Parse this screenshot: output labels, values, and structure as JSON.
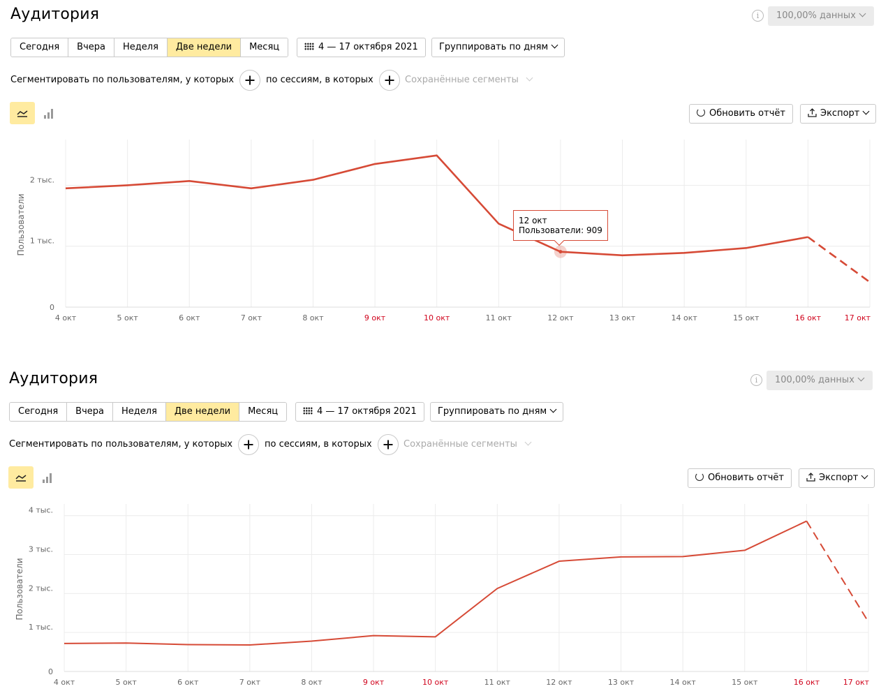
{
  "panels": [
    {
      "title": "Аудитория",
      "data_sampling": "100,00% данных",
      "periods": [
        {
          "label": "Сегодня",
          "active": false
        },
        {
          "label": "Вчера",
          "active": false
        },
        {
          "label": "Неделя",
          "active": false
        },
        {
          "label": "Две недели",
          "active": true
        },
        {
          "label": "Месяц",
          "active": false
        }
      ],
      "date_range": "4 — 17 октября 2021",
      "grouping": "Группировать по дням",
      "segment_users": "Сегментировать по пользователям, у которых",
      "segment_sessions": "по сессиям, в которых",
      "saved_segments": "Сохранённые сегменты",
      "refresh_label": "Обновить отчёт",
      "export_label": "Экспорт",
      "tooltip": {
        "date": "12 окт",
        "text": "Пользователи: 909"
      }
    },
    {
      "title": "Аудитория",
      "data_sampling": "100,00% данных",
      "periods": [
        {
          "label": "Сегодня",
          "active": false
        },
        {
          "label": "Вчера",
          "active": false
        },
        {
          "label": "Неделя",
          "active": false
        },
        {
          "label": "Две недели",
          "active": true
        },
        {
          "label": "Месяц",
          "active": false
        }
      ],
      "date_range": "4 — 17 октября 2021",
      "grouping": "Группировать по дням",
      "segment_users": "Сегментировать по пользователям, у которых",
      "segment_sessions": "по сессиям, в которых",
      "saved_segments": "Сохранённые сегменты",
      "refresh_label": "Обновить отчёт",
      "export_label": "Экспорт"
    }
  ],
  "colors": {
    "line": "#d64a36",
    "weekend": "#d0021b",
    "active_toggle": "#ffeba0"
  },
  "chart_data": [
    {
      "type": "line",
      "categories": [
        "4 окт",
        "5 окт",
        "6 окт",
        "7 окт",
        "8 окт",
        "9 окт",
        "10 окт",
        "11 окт",
        "12 окт",
        "13 окт",
        "14 окт",
        "15 окт",
        "16 окт",
        "17 окт"
      ],
      "weekend": [
        "9 окт",
        "10 окт",
        "16 окт",
        "17 окт"
      ],
      "ylabel": "Пользователи",
      "yticks": [
        {
          "value": 0,
          "label": "0"
        },
        {
          "value": 1000,
          "label": "1 тыс."
        },
        {
          "value": 2000,
          "label": "2 тыс."
        }
      ],
      "ylim": [
        0,
        2750
      ],
      "series": [
        {
          "values": [
            1950,
            2000,
            2070,
            1950,
            2090,
            2350,
            2490,
            1370,
            909,
            850,
            890,
            970,
            1150,
            410
          ],
          "dashed_from": 12
        }
      ],
      "highlight_index": 8,
      "grid": true
    },
    {
      "type": "line",
      "categories": [
        "4 окт",
        "5 окт",
        "6 окт",
        "7 окт",
        "8 окт",
        "9 окт",
        "10 окт",
        "11 окт",
        "12 окт",
        "13 окт",
        "14 окт",
        "15 окт",
        "16 окт",
        "17 окт"
      ],
      "weekend": [
        "9 окт",
        "10 окт",
        "16 окт",
        "17 окт"
      ],
      "ylabel": "Пользователи",
      "yticks": [
        {
          "value": 0,
          "label": "0"
        },
        {
          "value": 1000,
          "label": "1 тыс."
        },
        {
          "value": 2000,
          "label": "2 тыс."
        },
        {
          "value": 3000,
          "label": "3 тыс."
        },
        {
          "value": 4000,
          "label": "4 тыс."
        }
      ],
      "ylim": [
        0,
        4300
      ],
      "series": [
        {
          "values": [
            720,
            730,
            690,
            680,
            780,
            920,
            890,
            2130,
            2830,
            2940,
            2950,
            3110,
            3860,
            1270
          ],
          "dashed_from": 12
        }
      ],
      "grid": true
    }
  ]
}
